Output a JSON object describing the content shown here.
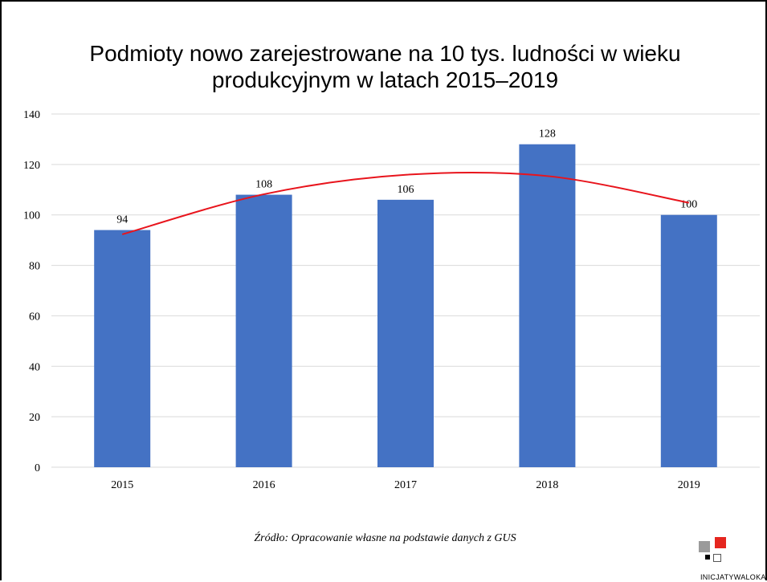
{
  "chart_data": {
    "type": "bar",
    "title": "Podmioty nowo zarejestrowane na 10 tys. ludności w wieku produkcyjnym w latach 2015–2019",
    "title_lines": [
      "Podmioty nowo zarejestrowane na 10 tys. ludności w wieku",
      "produkcyjnym w latach 2015–2019"
    ],
    "categories": [
      "2015",
      "2016",
      "2017",
      "2018",
      "2019"
    ],
    "values": [
      94,
      108,
      106,
      128,
      100
    ],
    "data_labels": [
      "94",
      "108",
      "106",
      "128",
      "100"
    ],
    "ylim": [
      0,
      140
    ],
    "yticks": [
      0,
      20,
      40,
      60,
      80,
      100,
      120,
      140
    ],
    "xlabel": "",
    "ylabel": "",
    "grid": true,
    "legend": "none",
    "bar_color": "#4472c4",
    "trendline": {
      "type": "polynomial",
      "color": "#e8141c",
      "x": [
        "2015",
        "2016",
        "2017",
        "2018",
        "2019"
      ],
      "y": [
        92.3,
        108.2,
        115.9,
        115.4,
        104.8
      ]
    }
  },
  "source": "Źródło: Opracowanie własne na podstawie danych z GUS",
  "logo": {
    "text": "INICJATYWALOKALNA.PL",
    "colors": {
      "gray": "#9b9b9b",
      "red": "#e5261f",
      "black": "#000000"
    }
  }
}
